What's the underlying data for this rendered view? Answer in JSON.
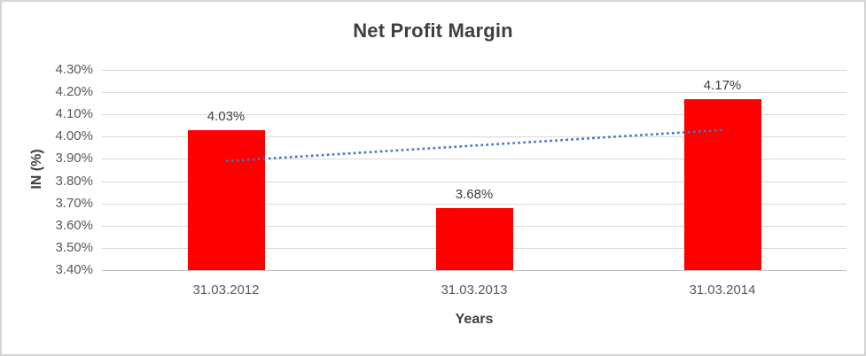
{
  "chart_data": {
    "type": "bar",
    "title": "Net Profit Margin",
    "xlabel": "Years",
    "ylabel": "IN (%)",
    "categories": [
      "31.03.2012",
      "31.03.2013",
      "31.03.2014"
    ],
    "values": [
      4.03,
      3.68,
      4.17
    ],
    "data_labels": [
      "4.03%",
      "3.68%",
      "4.17%"
    ],
    "ylim": [
      3.4,
      4.3
    ],
    "ytick_labels": [
      "4.30%",
      "4.20%",
      "4.10%",
      "4.00%",
      "3.90%",
      "3.80%",
      "3.70%",
      "3.60%",
      "3.50%",
      "3.40%"
    ],
    "ytick_values": [
      4.3,
      4.2,
      4.1,
      4.0,
      3.9,
      3.8,
      3.7,
      3.6,
      3.5,
      3.4
    ],
    "grid": true,
    "legend": "none",
    "colors": {
      "bar": "#ff0000",
      "trendline": "#4472c4",
      "gridline": "#d9d9d9",
      "axis_line": "#bfbfbf",
      "title_text": "#3f3f3f",
      "tick_text": "#595959",
      "frame_border": "#d4d4d4"
    },
    "trendline": {
      "style": "dotted",
      "start_value": 3.89,
      "end_value": 4.03,
      "start_category_index": 0,
      "end_category_index": 2
    }
  }
}
